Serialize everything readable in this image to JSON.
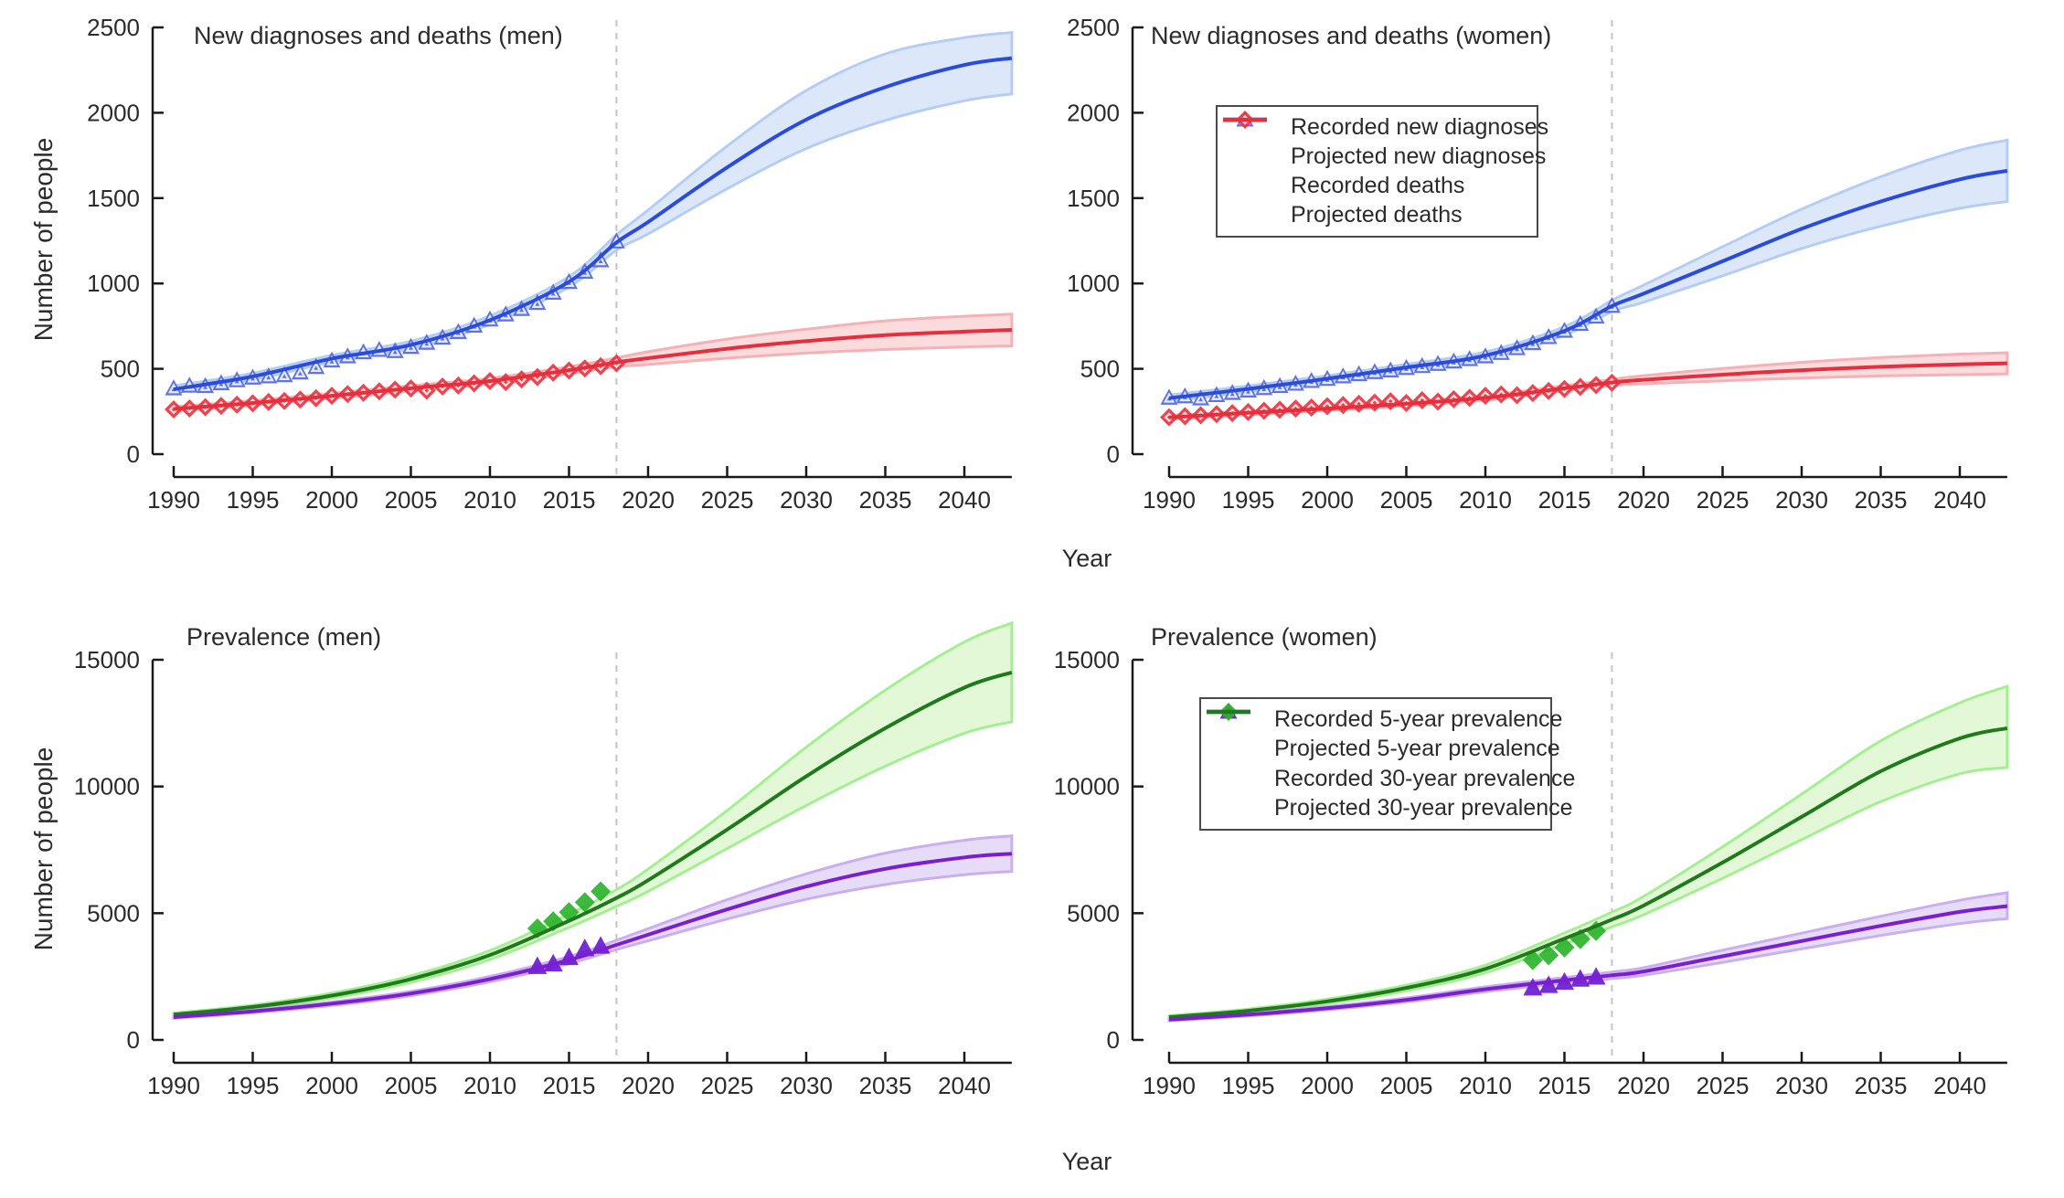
{
  "figure": {
    "xlabel": "Year",
    "ylabel": "Number of people",
    "background": "#ffffff"
  },
  "palette": {
    "blue": {
      "line": "#2b4bdb",
      "marker": "#5168e2",
      "band_fill": "#dce8fa",
      "band_edge": "#b5cdf5"
    },
    "red": {
      "line": "#e62e3c",
      "marker": "#ee3340",
      "band_fill": "#fbdbdc",
      "band_edge": "#f6b0b6"
    },
    "purple": {
      "line": "#7a1fd0",
      "marker": "#6c1ad2",
      "band_fill": "#e7dcf7",
      "band_edge": "#cbaef0"
    },
    "green": {
      "line": "#1f7a1b",
      "marker": "#2cb32c",
      "band_fill": "#e2f8d7",
      "band_edge": "#a4ef92"
    },
    "dashed_line": "#c4c4c4",
    "axis": "#1a1a1a",
    "text": "#2b2b2b"
  },
  "anchor_years": [
    1990,
    1995,
    2000,
    2005,
    2010,
    2015,
    2018,
    2020,
    2025,
    2030,
    2035,
    2040,
    2043
  ],
  "recorded_years_annual": [
    1990,
    1991,
    1992,
    1993,
    1994,
    1995,
    1996,
    1997,
    1998,
    1999,
    2000,
    2001,
    2002,
    2003,
    2004,
    2005,
    2006,
    2007,
    2008,
    2009,
    2010,
    2011,
    2012,
    2013,
    2014,
    2015,
    2016,
    2017,
    2018
  ],
  "recorded_years_prevalence": [
    2013,
    2014,
    2015,
    2016,
    2017
  ],
  "chart_data": [
    {
      "type": "line",
      "title": "New diagnoses and deaths (men)",
      "ylabel": "Number of people",
      "xlabel": "Year",
      "ylim": [
        0,
        2500
      ],
      "yticks": [
        0,
        500,
        1000,
        1500,
        2000,
        2500
      ],
      "xlim": [
        1990,
        2043
      ],
      "xticks": [
        1990,
        1995,
        2000,
        2005,
        2010,
        2015,
        2020,
        2025,
        2030,
        2035,
        2040
      ],
      "cutoff_year": 2018,
      "legend": null,
      "series": [
        {
          "name": "Projected new diagnoses",
          "kind": "line",
          "palette": "blue",
          "years_ref": "anchor_years",
          "values": [
            380,
            455,
            560,
            640,
            785,
            1010,
            1240,
            1360,
            1680,
            1960,
            2150,
            2280,
            2320
          ],
          "ci_lower": [
            360,
            435,
            540,
            618,
            760,
            980,
            1195,
            1290,
            1555,
            1790,
            1955,
            2070,
            2110
          ],
          "ci_upper": [
            400,
            475,
            580,
            662,
            810,
            1040,
            1285,
            1430,
            1805,
            2130,
            2345,
            2440,
            2470
          ]
        },
        {
          "name": "Recorded new diagnoses",
          "kind": "scatter",
          "symbol": "triangle",
          "symbol_style": "outlined",
          "palette": "blue",
          "years_ref": "recorded_years_annual",
          "values": [
            385,
            400,
            398,
            415,
            432,
            448,
            455,
            462,
            478,
            510,
            548,
            572,
            596,
            610,
            603,
            628,
            652,
            682,
            715,
            752,
            788,
            818,
            850,
            885,
            945,
            1008,
            1068,
            1135,
            1245
          ]
        },
        {
          "name": "Projected deaths",
          "kind": "line",
          "palette": "red",
          "years_ref": "anchor_years",
          "values": [
            265,
            300,
            342,
            386,
            428,
            492,
            538,
            562,
            618,
            662,
            697,
            718,
            728
          ],
          "ci_lower": [
            252,
            287,
            328,
            371,
            412,
            472,
            512,
            525,
            562,
            592,
            613,
            628,
            634
          ],
          "ci_upper": [
            278,
            313,
            356,
            401,
            444,
            512,
            564,
            600,
            674,
            732,
            781,
            808,
            820
          ]
        },
        {
          "name": "Recorded deaths",
          "kind": "scatter",
          "symbol": "diamond",
          "symbol_style": "outlined",
          "palette": "red",
          "years_ref": "recorded_years_annual",
          "values": [
            262,
            268,
            275,
            283,
            290,
            298,
            306,
            312,
            320,
            328,
            342,
            352,
            360,
            368,
            378,
            385,
            372,
            396,
            402,
            415,
            428,
            422,
            438,
            452,
            478,
            490,
            502,
            515,
            532
          ]
        }
      ]
    },
    {
      "type": "line",
      "title": "New diagnoses and deaths (women)",
      "ylabel": null,
      "xlabel": "Year",
      "ylim": [
        0,
        2500
      ],
      "yticks": [
        0,
        500,
        1000,
        1500,
        2000,
        2500
      ],
      "xlim": [
        1990,
        2043
      ],
      "xticks": [
        1990,
        1995,
        2000,
        2005,
        2010,
        2015,
        2020,
        2025,
        2030,
        2035,
        2040
      ],
      "cutoff_year": 2018,
      "legend": {
        "items": [
          {
            "symbol": "triangle",
            "symbol_style": "outlined",
            "palette": "blue",
            "label": "Recorded new diagnoses"
          },
          {
            "symbol": "line",
            "palette": "blue",
            "label": "Projected new diagnoses"
          },
          {
            "symbol": "diamond",
            "symbol_style": "outlined",
            "palette": "red",
            "label": "Recorded deaths"
          },
          {
            "symbol": "line",
            "palette": "red",
            "label": "Projected deaths"
          }
        ]
      },
      "series": [
        {
          "name": "Projected new diagnoses",
          "kind": "line",
          "palette": "blue",
          "years_ref": "anchor_years",
          "values": [
            328,
            382,
            442,
            508,
            578,
            722,
            868,
            940,
            1130,
            1320,
            1480,
            1610,
            1660
          ],
          "ci_lower": [
            310,
            364,
            424,
            489,
            557,
            697,
            835,
            890,
            1045,
            1205,
            1335,
            1440,
            1480
          ],
          "ci_upper": [
            346,
            400,
            460,
            527,
            599,
            747,
            901,
            990,
            1215,
            1435,
            1625,
            1780,
            1840
          ]
        },
        {
          "name": "Recorded new diagnoses",
          "kind": "scatter",
          "symbol": "triangle",
          "symbol_style": "outlined",
          "palette": "blue",
          "years_ref": "recorded_years_annual",
          "values": [
            330,
            338,
            326,
            345,
            358,
            372,
            386,
            398,
            412,
            428,
            440,
            455,
            468,
            480,
            490,
            504,
            515,
            528,
            542,
            556,
            572,
            592,
            620,
            650,
            685,
            722,
            762,
            805,
            868
          ]
        },
        {
          "name": "Projected deaths",
          "kind": "line",
          "palette": "red",
          "years_ref": "anchor_years",
          "values": [
            215,
            242,
            267,
            295,
            330,
            386,
            420,
            436,
            466,
            492,
            512,
            526,
            532
          ],
          "ci_lower": [
            204,
            231,
            256,
            283,
            317,
            371,
            402,
            412,
            430,
            446,
            458,
            466,
            470
          ],
          "ci_upper": [
            226,
            253,
            278,
            307,
            343,
            401,
            438,
            460,
            502,
            538,
            566,
            586,
            594
          ]
        },
        {
          "name": "Recorded deaths",
          "kind": "scatter",
          "symbol": "diamond",
          "symbol_style": "outlined",
          "palette": "red",
          "years_ref": "recorded_years_annual",
          "values": [
            216,
            222,
            228,
            234,
            240,
            247,
            254,
            260,
            267,
            273,
            281,
            288,
            295,
            302,
            310,
            300,
            316,
            308,
            322,
            330,
            342,
            350,
            345,
            358,
            370,
            382,
            394,
            405,
            418
          ]
        }
      ]
    },
    {
      "type": "line",
      "title": "Prevalence (men)",
      "ylabel": "Number of people",
      "xlabel": "Year",
      "ylim": [
        0,
        15000
      ],
      "yticks": [
        0,
        5000,
        10000,
        15000
      ],
      "xlim": [
        1990,
        2043
      ],
      "xticks": [
        1990,
        1995,
        2000,
        2005,
        2010,
        2015,
        2020,
        2025,
        2030,
        2035,
        2040
      ],
      "cutoff_year": 2018,
      "legend": null,
      "series": [
        {
          "name": "Projected 30-year prevalence",
          "kind": "line",
          "palette": "green",
          "years_ref": "anchor_years",
          "values": [
            1000,
            1300,
            1750,
            2400,
            3350,
            4700,
            5600,
            6300,
            8300,
            10400,
            12300,
            13900,
            14500
          ],
          "ci_lower": [
            940,
            1225,
            1650,
            2270,
            3175,
            4440,
            5270,
            5860,
            7550,
            9250,
            10800,
            12100,
            12550
          ],
          "ci_upper": [
            1060,
            1375,
            1850,
            2530,
            3525,
            4960,
            5930,
            6740,
            9050,
            11550,
            13800,
            15700,
            16450
          ]
        },
        {
          "name": "Recorded 30-year prevalence",
          "kind": "scatter",
          "symbol": "diamond",
          "symbol_style": "solid",
          "palette": "green",
          "years_ref": "recorded_years_prevalence",
          "values": [
            4400,
            4680,
            5040,
            5430,
            5860
          ]
        },
        {
          "name": "Projected 5-year prevalence",
          "kind": "line",
          "palette": "purple",
          "years_ref": "anchor_years",
          "values": [
            900,
            1130,
            1430,
            1830,
            2400,
            3150,
            3750,
            4150,
            5150,
            6050,
            6750,
            7200,
            7350
          ],
          "ci_lower": [
            850,
            1070,
            1360,
            1745,
            2295,
            3010,
            3570,
            3910,
            4770,
            5550,
            6130,
            6520,
            6650
          ],
          "ci_upper": [
            950,
            1190,
            1500,
            1915,
            2505,
            3290,
            3930,
            4390,
            5530,
            6550,
            7370,
            7880,
            8050
          ]
        },
        {
          "name": "Recorded 5-year prevalence",
          "kind": "scatter",
          "symbol": "triangle",
          "symbol_style": "solid",
          "palette": "purple",
          "years_ref": "recorded_years_prevalence",
          "values": [
            2900,
            3000,
            3250,
            3600,
            3700
          ]
        }
      ]
    },
    {
      "type": "line",
      "title": "Prevalence (women)",
      "ylabel": null,
      "xlabel": "Year",
      "ylim": [
        0,
        15000
      ],
      "yticks": [
        0,
        5000,
        10000,
        15000
      ],
      "xlim": [
        1990,
        2043
      ],
      "xticks": [
        1990,
        1995,
        2000,
        2005,
        2010,
        2015,
        2020,
        2025,
        2030,
        2035,
        2040
      ],
      "cutoff_year": 2018,
      "legend": {
        "items": [
          {
            "symbol": "triangle",
            "symbol_style": "solid",
            "palette": "purple",
            "label": "Recorded 5-year prevalence"
          },
          {
            "symbol": "line",
            "palette": "purple",
            "label": "Projected 5-year prevalence"
          },
          {
            "symbol": "diamond",
            "symbol_style": "solid",
            "palette": "green",
            "label": "Recorded 30-year prevalence"
          },
          {
            "symbol": "line",
            "palette": "green",
            "label": "Projected 30-year prevalence"
          }
        ]
      },
      "series": [
        {
          "name": "Projected 30-year prevalence",
          "kind": "line",
          "palette": "green",
          "years_ref": "anchor_years",
          "values": [
            900,
            1150,
            1520,
            2050,
            2800,
            4000,
            4750,
            5300,
            7000,
            8800,
            10600,
            11900,
            12300
          ],
          "ci_lower": [
            845,
            1080,
            1430,
            1935,
            2650,
            3780,
            4460,
            4940,
            6380,
            7900,
            9400,
            10500,
            10750
          ],
          "ci_upper": [
            955,
            1220,
            1610,
            2165,
            2950,
            4220,
            5040,
            5660,
            7620,
            9700,
            11800,
            13300,
            13950
          ]
        },
        {
          "name": "Recorded 30-year prevalence",
          "kind": "scatter",
          "symbol": "diamond",
          "symbol_style": "solid",
          "palette": "green",
          "years_ref": "recorded_years_prevalence",
          "values": [
            3150,
            3340,
            3650,
            3980,
            4300
          ]
        },
        {
          "name": "Projected 5-year prevalence",
          "kind": "line",
          "palette": "purple",
          "years_ref": "anchor_years",
          "values": [
            800,
            1000,
            1250,
            1580,
            2000,
            2350,
            2550,
            2700,
            3300,
            3900,
            4500,
            5050,
            5280
          ],
          "ci_lower": [
            755,
            945,
            1185,
            1500,
            1905,
            2240,
            2420,
            2550,
            3060,
            3590,
            4120,
            4590,
            4790
          ],
          "ci_upper": [
            845,
            1055,
            1315,
            1660,
            2095,
            2460,
            2680,
            2850,
            3540,
            4210,
            4880,
            5510,
            5810
          ]
        },
        {
          "name": "Recorded 5-year prevalence",
          "kind": "scatter",
          "symbol": "triangle",
          "symbol_style": "solid",
          "palette": "purple",
          "years_ref": "recorded_years_prevalence",
          "values": [
            2050,
            2150,
            2280,
            2400,
            2480
          ]
        }
      ]
    }
  ]
}
